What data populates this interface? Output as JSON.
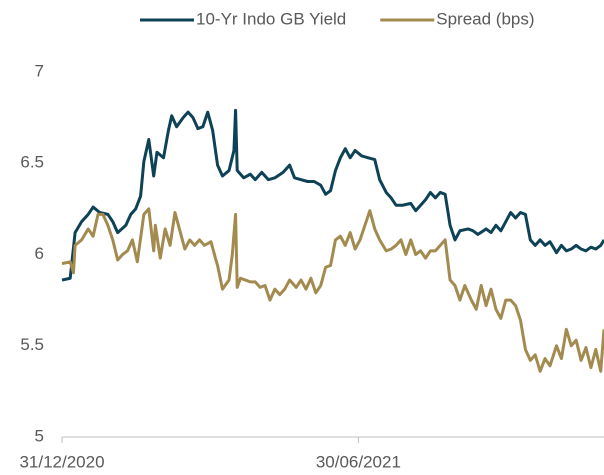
{
  "chart_data": {
    "type": "line",
    "xlim": [
      0,
      331
    ],
    "xticks": [
      {
        "value": 0,
        "label": "31/12/2020"
      },
      {
        "value": 181,
        "label": "30/06/2021"
      }
    ],
    "ylim": [
      5,
      7
    ],
    "yticks": [
      7,
      6.5,
      6,
      5.5,
      5
    ],
    "grid": false,
    "legend": "top",
    "series": [
      {
        "name": "10-Yr Indo GB Yield",
        "color": "#0d4257",
        "x": [
          0,
          5,
          8,
          12,
          16,
          19,
          23,
          28,
          31,
          34,
          39,
          42,
          45,
          48,
          50,
          53,
          56,
          58,
          62,
          65,
          67,
          70,
          74,
          77,
          80,
          83,
          86,
          89,
          92,
          95,
          98,
          102,
          105,
          106,
          107,
          111,
          115,
          118,
          122,
          126,
          130,
          135,
          139,
          142,
          146,
          150,
          154,
          158,
          161,
          164,
          167,
          170,
          173,
          176,
          179,
          183,
          187,
          191,
          194,
          198,
          201,
          204,
          208,
          213,
          216,
          219,
          222,
          225,
          228,
          231,
          234,
          237,
          240,
          243,
          248,
          251,
          254,
          259,
          262,
          265,
          268,
          271,
          274,
          277,
          280,
          283,
          286,
          289,
          292,
          295,
          298,
          302,
          305,
          308,
          311,
          314,
          317,
          320,
          323,
          326,
          329,
          331
        ],
        "values": [
          5.86,
          5.87,
          6.12,
          6.18,
          6.22,
          6.26,
          6.23,
          6.22,
          6.18,
          6.12,
          6.16,
          6.22,
          6.25,
          6.32,
          6.51,
          6.63,
          6.43,
          6.56,
          6.53,
          6.68,
          6.76,
          6.7,
          6.75,
          6.78,
          6.75,
          6.69,
          6.7,
          6.78,
          6.68,
          6.49,
          6.43,
          6.46,
          6.57,
          6.79,
          6.46,
          6.42,
          6.44,
          6.41,
          6.45,
          6.41,
          6.42,
          6.45,
          6.49,
          6.42,
          6.41,
          6.4,
          6.4,
          6.38,
          6.33,
          6.35,
          6.46,
          6.53,
          6.58,
          6.53,
          6.57,
          6.54,
          6.53,
          6.52,
          6.41,
          6.34,
          6.31,
          6.27,
          6.27,
          6.28,
          6.24,
          6.27,
          6.3,
          6.34,
          6.31,
          6.34,
          6.33,
          6.16,
          6.08,
          6.13,
          6.14,
          6.13,
          6.11,
          6.14,
          6.12,
          6.16,
          6.13,
          6.18,
          6.23,
          6.2,
          6.23,
          6.22,
          6.08,
          6.05,
          6.08,
          6.05,
          6.07,
          6.01,
          6.05,
          6.02,
          6.03,
          6.05,
          6.03,
          6.02,
          6.04,
          6.03,
          6.05,
          6.08
        ]
      },
      {
        "name": "Spread (bps)",
        "color": "#a38b4f",
        "x": [
          0,
          5,
          7,
          8,
          12,
          16,
          19,
          22,
          25,
          28,
          31,
          34,
          37,
          40,
          43,
          46,
          50,
          53,
          56,
          57,
          60,
          63,
          66,
          69,
          72,
          75,
          78,
          81,
          84,
          87,
          91,
          94,
          95,
          98,
          102,
          104,
          106,
          107,
          109,
          112,
          115,
          118,
          121,
          124,
          127,
          130,
          133,
          136,
          139,
          143,
          146,
          149,
          152,
          155,
          158,
          161,
          164,
          167,
          170,
          173,
          176,
          179,
          182,
          185,
          188,
          191,
          194,
          198,
          201,
          204,
          207,
          210,
          213,
          216,
          219,
          222,
          225,
          228,
          231,
          234,
          237,
          240,
          243,
          246,
          250,
          253,
          256,
          259,
          262,
          265,
          268,
          271,
          274,
          277,
          280,
          283,
          286,
          289,
          292,
          295,
          298,
          302,
          305,
          308,
          311,
          314,
          317,
          320,
          323,
          326,
          329,
          331
        ],
        "values": [
          5.95,
          5.96,
          5.9,
          6.05,
          6.08,
          6.14,
          6.1,
          6.22,
          6.22,
          6.16,
          6.08,
          5.97,
          6.0,
          6.02,
          6.08,
          5.96,
          6.22,
          6.25,
          6.02,
          6.16,
          5.98,
          6.14,
          6.05,
          6.23,
          6.13,
          6.03,
          6.08,
          6.05,
          6.08,
          6.05,
          6.07,
          5.97,
          5.94,
          5.81,
          5.86,
          6.0,
          6.22,
          5.82,
          5.87,
          5.86,
          5.85,
          5.85,
          5.82,
          5.83,
          5.75,
          5.81,
          5.78,
          5.81,
          5.86,
          5.82,
          5.86,
          5.81,
          5.87,
          5.79,
          5.83,
          5.93,
          5.94,
          6.08,
          6.1,
          6.05,
          6.12,
          6.03,
          6.08,
          6.16,
          6.24,
          6.14,
          6.08,
          6.02,
          6.03,
          6.05,
          6.08,
          6.0,
          6.08,
          6.0,
          6.02,
          5.98,
          6.02,
          6.02,
          6.05,
          6.08,
          5.86,
          5.83,
          5.75,
          5.83,
          5.75,
          5.7,
          5.83,
          5.72,
          5.81,
          5.7,
          5.65,
          5.75,
          5.75,
          5.72,
          5.64,
          5.48,
          5.42,
          5.45,
          5.36,
          5.43,
          5.39,
          5.5,
          5.43,
          5.59,
          5.5,
          5.53,
          5.42,
          5.49,
          5.38,
          5.48,
          5.36,
          5.59
        ]
      }
    ]
  }
}
